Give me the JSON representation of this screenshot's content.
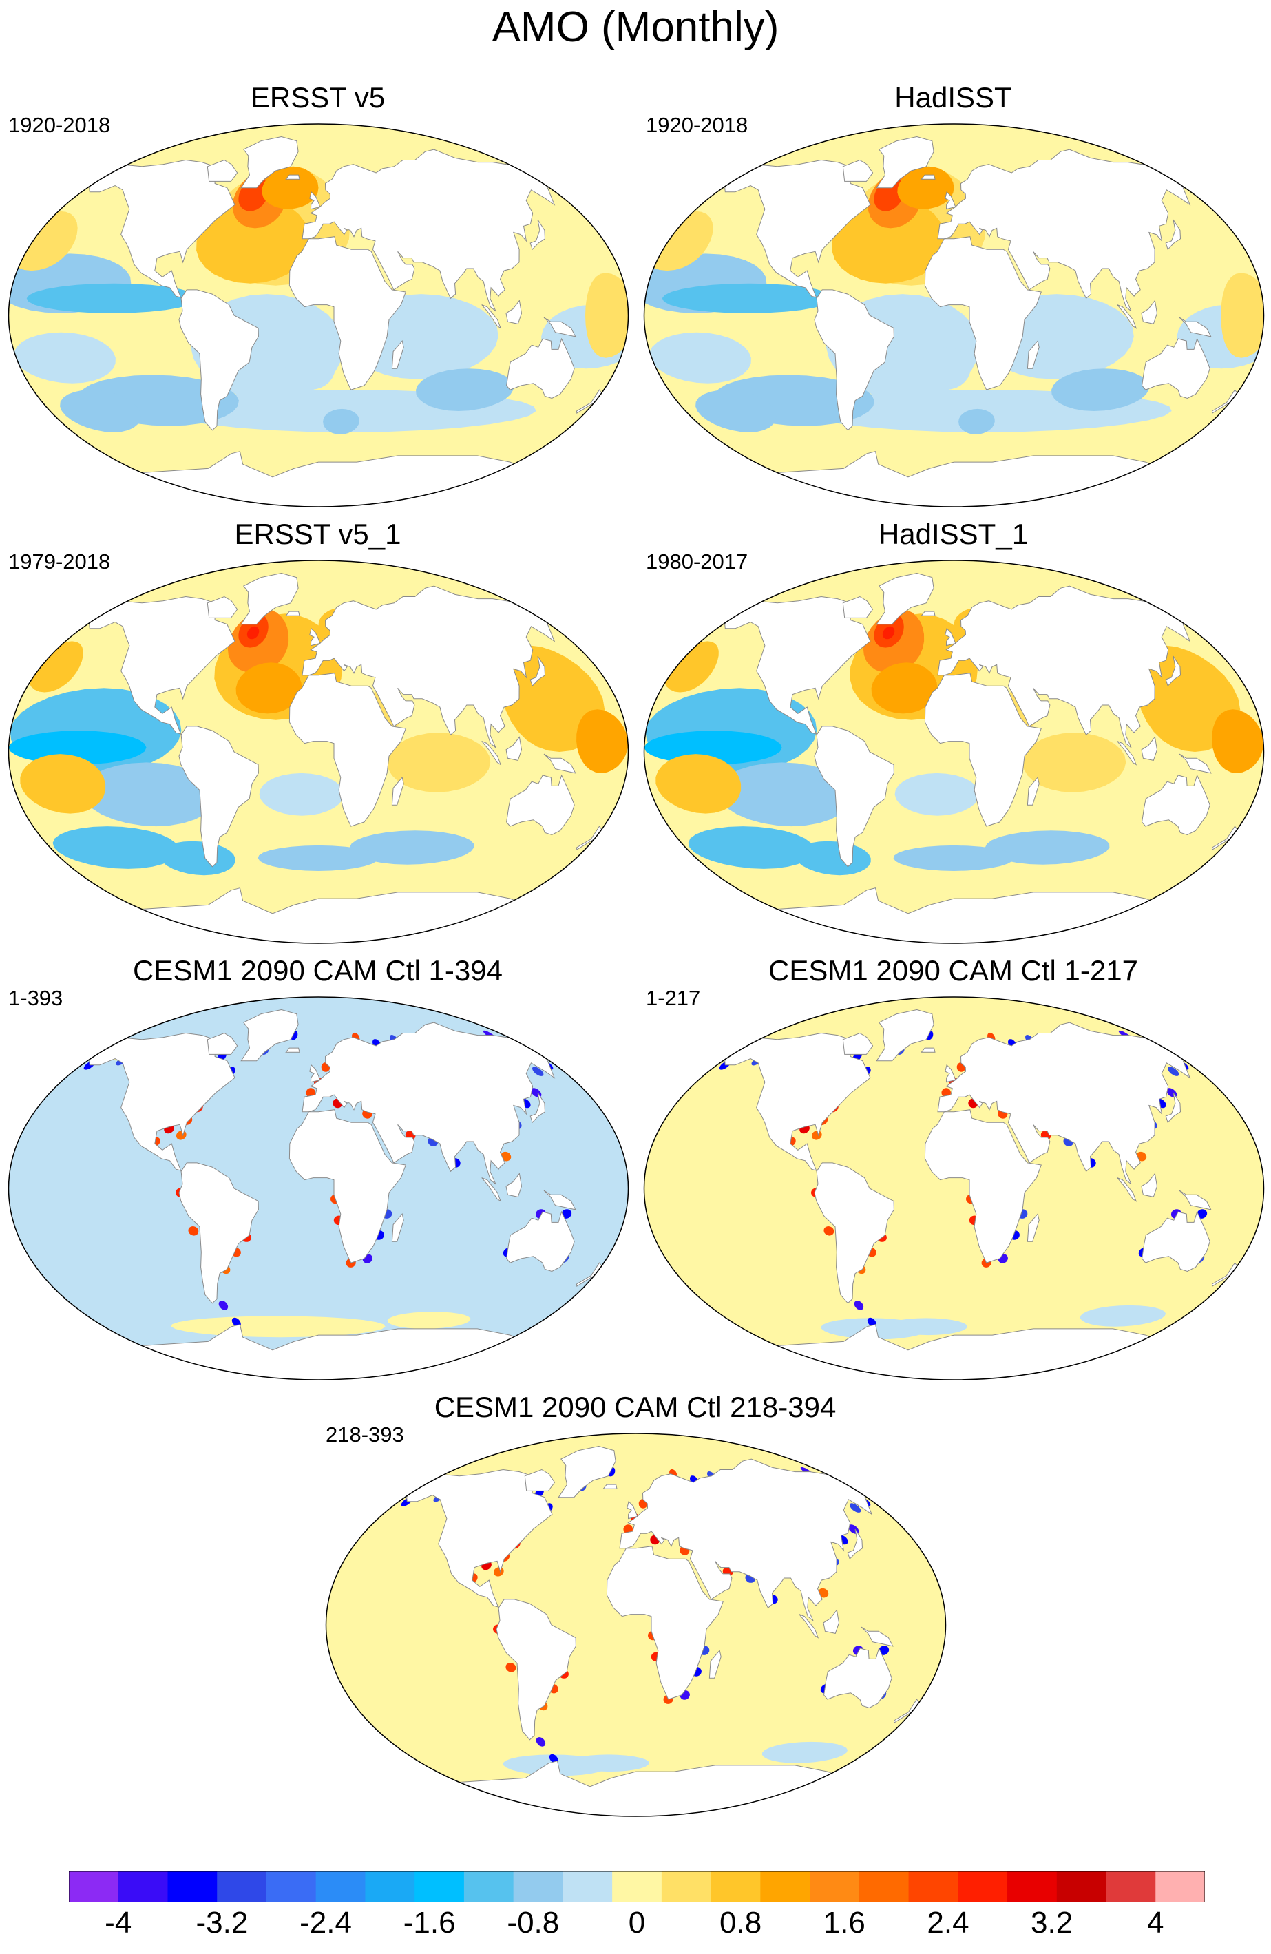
{
  "title": "AMO (Monthly)",
  "colors": {
    "scale": [
      "#8c2af4",
      "#3a0cf7",
      "#0000ff",
      "#2f48e8",
      "#3a6cf5",
      "#2b8cf7",
      "#1aa9f5",
      "#00bfff",
      "#56c2ee",
      "#93cbee",
      "#bfe1f4",
      "#fff7a4",
      "#ffe066",
      "#ffc62a",
      "#ffa500",
      "#ff8a14",
      "#ff6a00",
      "#ff4500",
      "#ff1f00",
      "#e80000",
      "#c80000",
      "#e03a3a",
      "#ffb0b0"
    ],
    "land": "#ffffff",
    "coast": "#8a8a8a"
  },
  "panels": [
    {
      "id": "ersst",
      "title": "ERSST v5",
      "period": "1920-2018",
      "ocean": "obs1"
    },
    {
      "id": "hadisst",
      "title": "HadISST",
      "period": "1920-2018",
      "ocean": "obs1"
    },
    {
      "id": "ersst1",
      "title": "ERSST v5_1",
      "period": "1979-2018",
      "ocean": "obs2"
    },
    {
      "id": "hadisst1",
      "title": "HadISST_1",
      "period": "1980-2017",
      "ocean": "obs2"
    },
    {
      "id": "cesm_a",
      "title": "CESM1 2090 CAM Ctl 1-394",
      "period": "1-393",
      "ocean": "model_neg"
    },
    {
      "id": "cesm_b",
      "title": "CESM1 2090 CAM Ctl 1-217",
      "period": "1-217",
      "ocean": "model_pos"
    },
    {
      "id": "cesm_c",
      "title": "CESM1 2090 CAM Ctl 218-394",
      "period": "218-393",
      "ocean": "model_pos"
    }
  ],
  "chart_data": {
    "type": "heatmap",
    "title": "AMO (Monthly)",
    "projection": "Robinson (global)",
    "colorbar": {
      "orientation": "horizontal",
      "placement": "bottom",
      "levels": [
        -4,
        -3.6,
        -3.2,
        -2.8,
        -2.4,
        -2,
        -1.6,
        -1.2,
        -0.8,
        -0.4,
        0,
        0.4,
        0.8,
        1.2,
        1.6,
        2,
        2.4,
        2.8,
        3.2,
        3.6,
        4
      ],
      "tick_labels": [
        "-4",
        "-3.2",
        "-2.4",
        "-1.6",
        "-0.8",
        "0",
        "0.8",
        "1.6",
        "2.4",
        "3.2",
        "4"
      ]
    },
    "maps": [
      {
        "name": "ERSST v5",
        "period": "1920-2018",
        "range_approx": [
          -1.2,
          2.4
        ],
        "max_region": "North Atlantic"
      },
      {
        "name": "HadISST",
        "period": "1920-2018",
        "range_approx": [
          -1.2,
          2.8
        ],
        "max_region": "North Atlantic"
      },
      {
        "name": "ERSST v5_1",
        "period": "1979-2018",
        "range_approx": [
          -1.6,
          2.4
        ],
        "max_region": "North Atlantic"
      },
      {
        "name": "HadISST_1",
        "period": "1980-2017",
        "range_approx": [
          -1.6,
          3.2
        ],
        "max_region": "North Atlantic"
      },
      {
        "name": "CESM1 2090 CAM Ctl 1-394",
        "period": "1-393",
        "background_value": -0.2,
        "coastal_extremes": [
          -4,
          4
        ]
      },
      {
        "name": "CESM1 2090 CAM Ctl 1-217",
        "period": "1-217",
        "background_value": 0.2,
        "coastal_extremes": [
          -4,
          4
        ]
      },
      {
        "name": "CESM1 2090 CAM Ctl 218-394",
        "period": "218-393",
        "background_value": 0.2,
        "coastal_extremes": [
          -4,
          4
        ]
      }
    ]
  }
}
